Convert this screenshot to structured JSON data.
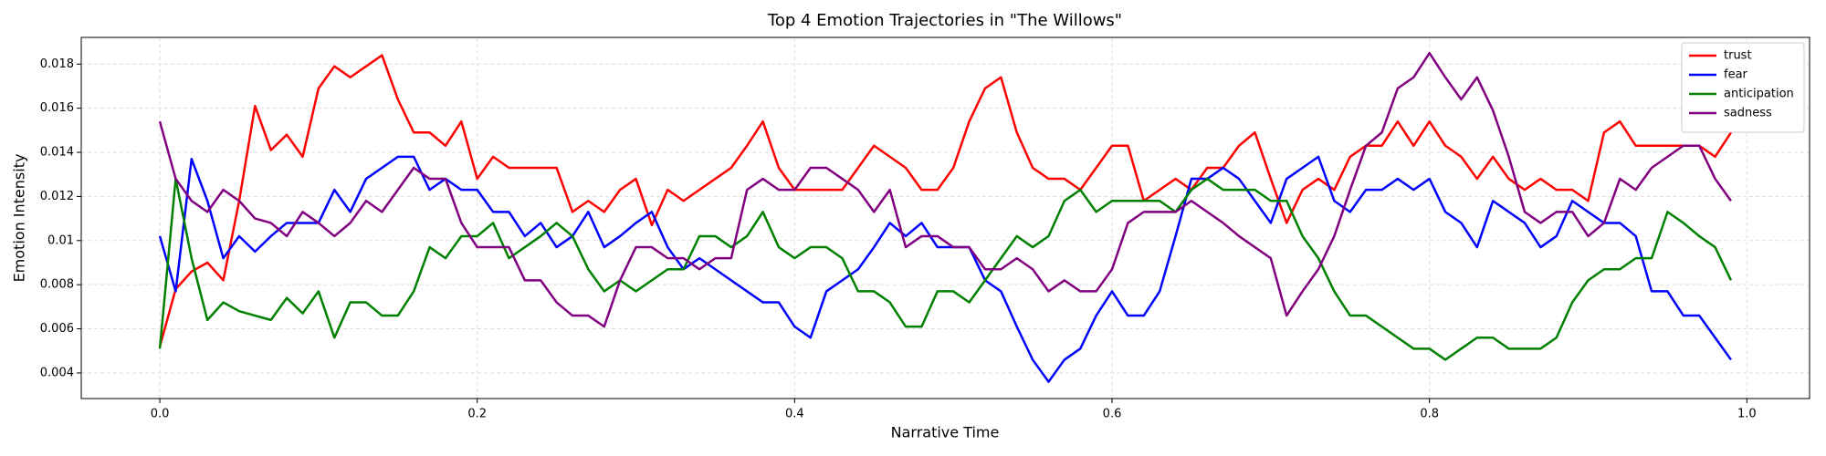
{
  "chart_data": {
    "type": "line",
    "title": "Top 4 Emotion Trajectories in \"The Willows\"",
    "x_label": "Narrative Time",
    "y_label": "Emotion Intensity",
    "x": [
      0,
      0.01,
      0.02,
      0.03,
      0.04,
      0.05,
      0.06,
      0.07,
      0.08,
      0.09,
      0.1,
      0.11,
      0.12,
      0.13,
      0.14,
      0.15,
      0.16,
      0.17,
      0.18,
      0.19,
      0.2,
      0.21,
      0.22,
      0.23,
      0.24,
      0.25,
      0.26,
      0.27,
      0.28,
      0.29,
      0.3,
      0.31,
      0.32,
      0.33,
      0.34,
      0.35,
      0.36,
      0.37,
      0.38,
      0.39,
      0.4,
      0.41,
      0.42,
      0.43,
      0.44,
      0.45,
      0.46,
      0.47,
      0.48,
      0.49,
      0.5,
      0.51,
      0.52,
      0.53,
      0.54,
      0.55,
      0.56,
      0.57,
      0.58,
      0.59,
      0.6,
      0.61,
      0.62,
      0.63,
      0.64,
      0.65,
      0.66,
      0.67,
      0.68,
      0.69,
      0.7,
      0.71,
      0.72,
      0.73,
      0.74,
      0.75,
      0.76,
      0.77,
      0.78,
      0.79,
      0.8,
      0.81,
      0.82,
      0.83,
      0.84,
      0.85,
      0.86,
      0.87,
      0.88,
      0.89,
      0.9,
      0.91,
      0.92,
      0.93,
      0.94,
      0.95,
      0.96,
      0.97,
      0.98,
      0.99
    ],
    "series": [
      {
        "name": "trust",
        "color": "#ff0000",
        "values": [
          0.0052,
          0.0078,
          0.0086,
          0.009,
          0.0082,
          0.0118,
          0.0161,
          0.0141,
          0.0148,
          0.0138,
          0.0169,
          0.0179,
          0.0174,
          0.0179,
          0.0184,
          0.0164,
          0.0149,
          0.0149,
          0.0143,
          0.0154,
          0.0128,
          0.0138,
          0.0133,
          0.0133,
          0.0133,
          0.0133,
          0.0113,
          0.0118,
          0.0113,
          0.0123,
          0.0128,
          0.0107,
          0.0123,
          0.0118,
          0.0123,
          0.0128,
          0.0133,
          0.0143,
          0.0154,
          0.0133,
          0.0123,
          0.0123,
          0.0123,
          0.0123,
          0.0133,
          0.0143,
          0.0138,
          0.0133,
          0.0123,
          0.0123,
          0.0133,
          0.0154,
          0.0169,
          0.0174,
          0.0149,
          0.0133,
          0.0128,
          0.0128,
          0.0123,
          0.0133,
          0.0143,
          0.0143,
          0.0118,
          0.0123,
          0.0128,
          0.0123,
          0.0133,
          0.0133,
          0.0143,
          0.0149,
          0.0128,
          0.0108,
          0.0123,
          0.0128,
          0.0123,
          0.0138,
          0.0143,
          0.0143,
          0.0154,
          0.0143,
          0.0154,
          0.0143,
          0.0138,
          0.0128,
          0.0138,
          0.0128,
          0.0123,
          0.0128,
          0.0123,
          0.0123,
          0.0118,
          0.0149,
          0.0154,
          0.0143,
          0.0143,
          0.0143,
          0.0143,
          0.0143,
          0.0138,
          0.0149
        ]
      },
      {
        "name": "fear",
        "color": "#0000ff",
        "values": [
          0.0102,
          0.0077,
          0.0137,
          0.0118,
          0.0092,
          0.0102,
          0.0095,
          0.0102,
          0.0108,
          0.0108,
          0.0108,
          0.0123,
          0.0113,
          0.0128,
          0.0133,
          0.0138,
          0.0138,
          0.0123,
          0.0128,
          0.0123,
          0.0123,
          0.0113,
          0.0113,
          0.0102,
          0.0108,
          0.0097,
          0.0102,
          0.0113,
          0.0097,
          0.0102,
          0.0108,
          0.0113,
          0.0097,
          0.0087,
          0.0092,
          0.0087,
          0.0082,
          0.0077,
          0.0072,
          0.0072,
          0.0061,
          0.0056,
          0.0077,
          0.0082,
          0.0087,
          0.0097,
          0.0108,
          0.0102,
          0.0108,
          0.0097,
          0.0097,
          0.0097,
          0.0082,
          0.0077,
          0.0061,
          0.0046,
          0.0036,
          0.0046,
          0.0051,
          0.0066,
          0.0077,
          0.0066,
          0.0066,
          0.0077,
          0.0102,
          0.0128,
          0.0128,
          0.0133,
          0.0128,
          0.0118,
          0.0108,
          0.0128,
          0.0133,
          0.0138,
          0.0118,
          0.0113,
          0.0123,
          0.0123,
          0.0128,
          0.0123,
          0.0128,
          0.0113,
          0.0108,
          0.0097,
          0.0118,
          0.0113,
          0.0108,
          0.0097,
          0.0102,
          0.0118,
          0.0113,
          0.0108,
          0.0108,
          0.0102,
          0.0077,
          0.0077,
          0.0066,
          0.0066,
          0.0056,
          0.0046
        ]
      },
      {
        "name": "anticipation",
        "color": "#008000",
        "values": [
          0.0051,
          0.0128,
          0.0092,
          0.0064,
          0.0072,
          0.0068,
          0.0066,
          0.0064,
          0.0074,
          0.0067,
          0.0077,
          0.0056,
          0.0072,
          0.0072,
          0.0066,
          0.0066,
          0.0077,
          0.0097,
          0.0092,
          0.0102,
          0.0102,
          0.0108,
          0.0092,
          0.0097,
          0.0102,
          0.0108,
          0.0102,
          0.0087,
          0.0077,
          0.0082,
          0.0077,
          0.0082,
          0.0087,
          0.0087,
          0.0102,
          0.0102,
          0.0097,
          0.0102,
          0.0113,
          0.0097,
          0.0092,
          0.0097,
          0.0097,
          0.0092,
          0.0077,
          0.0077,
          0.0072,
          0.0061,
          0.0061,
          0.0077,
          0.0077,
          0.0072,
          0.0082,
          0.0092,
          0.0102,
          0.0097,
          0.0102,
          0.0118,
          0.0123,
          0.0113,
          0.0118,
          0.0118,
          0.0118,
          0.0118,
          0.0113,
          0.0123,
          0.0128,
          0.0123,
          0.0123,
          0.0123,
          0.0118,
          0.0118,
          0.0102,
          0.0092,
          0.0077,
          0.0066,
          0.0066,
          0.0061,
          0.0056,
          0.0051,
          0.0051,
          0.0046,
          0.0051,
          0.0056,
          0.0056,
          0.0051,
          0.0051,
          0.0051,
          0.0056,
          0.0072,
          0.0082,
          0.0087,
          0.0087,
          0.0092,
          0.0092,
          0.0113,
          0.0108,
          0.0102,
          0.0097,
          0.0082
        ]
      },
      {
        "name": "sadness",
        "color": "#800080",
        "values": [
          0.0154,
          0.0128,
          0.0118,
          0.0113,
          0.0123,
          0.0118,
          0.011,
          0.0108,
          0.0102,
          0.0113,
          0.0108,
          0.0102,
          0.0108,
          0.0118,
          0.0113,
          0.0123,
          0.0133,
          0.0128,
          0.0128,
          0.0108,
          0.0097,
          0.0097,
          0.0097,
          0.0082,
          0.0082,
          0.0072,
          0.0066,
          0.0066,
          0.0061,
          0.0082,
          0.0097,
          0.0097,
          0.0092,
          0.0092,
          0.0087,
          0.0092,
          0.0092,
          0.0123,
          0.0128,
          0.0123,
          0.0123,
          0.0133,
          0.0133,
          0.0128,
          0.0123,
          0.0113,
          0.0123,
          0.0097,
          0.0102,
          0.0102,
          0.0097,
          0.0097,
          0.0087,
          0.0087,
          0.0092,
          0.0087,
          0.0077,
          0.0082,
          0.0077,
          0.0077,
          0.0087,
          0.0108,
          0.0113,
          0.0113,
          0.0113,
          0.0118,
          0.0113,
          0.0108,
          0.0102,
          0.0097,
          0.0092,
          0.0066,
          0.0077,
          0.0087,
          0.0102,
          0.0123,
          0.0143,
          0.0149,
          0.0169,
          0.0174,
          0.0185,
          0.0174,
          0.0164,
          0.0174,
          0.0159,
          0.0138,
          0.0113,
          0.0108,
          0.0113,
          0.0113,
          0.0102,
          0.0108,
          0.0128,
          0.0123,
          0.0133,
          0.0138,
          0.0143,
          0.0143,
          0.0128,
          0.0118
        ]
      }
    ],
    "xlim": [
      -0.0495,
      1.0395
    ],
    "ylim": [
      0.00284,
      0.01921
    ],
    "xticks": [
      {
        "value": 0,
        "label": "0.0"
      },
      {
        "value": 0.2,
        "label": "0.2"
      },
      {
        "value": 0.4,
        "label": "0.4"
      },
      {
        "value": 0.6,
        "label": "0.6"
      },
      {
        "value": 0.8,
        "label": "0.8"
      },
      {
        "value": 1,
        "label": "1.0"
      }
    ],
    "yticks": [
      0.004,
      0.006,
      0.008,
      0.01,
      0.012,
      0.014,
      0.016,
      0.018
    ],
    "grid": true,
    "legend": "upper right"
  }
}
